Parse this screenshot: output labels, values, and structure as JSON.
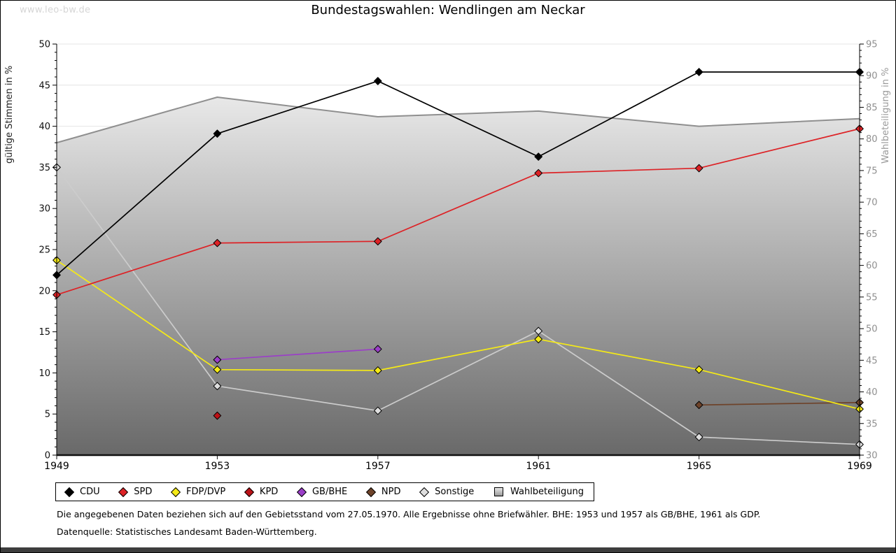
{
  "page": {
    "watermark": "www.leo-bw.de",
    "title": "Bundestagswahlen: Wendlingen am Neckar",
    "footnote_line1": "Die angegebenen Daten beziehen sich auf den Gebietsstand vom 27.05.1970. Alle Ergebnisse ohne Briefwähler. BHE: 1953 und 1957 als GB/BHE, 1961 als GDP.",
    "footnote_line2": "Datenquelle: Statistisches Landesamt Baden-Württemberg."
  },
  "chart_data": {
    "type": "line",
    "title": "Bundestagswahlen: Wendlingen am Neckar",
    "x": [
      1949,
      1953,
      1957,
      1961,
      1965,
      1969
    ],
    "left_axis": {
      "label": "gültige Stimmen in %",
      "min": 0,
      "max": 50,
      "tick_step": 5,
      "minor_step": 1
    },
    "right_axis": {
      "label": "Wahlbeteiligung in %",
      "min": 30,
      "max": 95,
      "tick_step": 5,
      "minor_step": 1
    },
    "grid": true,
    "legend_position": "bottom",
    "series": [
      {
        "name": "CDU",
        "color": "#000000",
        "axis": "left",
        "values": [
          21.9,
          39.1,
          45.5,
          36.3,
          46.6,
          46.6
        ]
      },
      {
        "name": "SPD",
        "color": "#dd2226",
        "axis": "left",
        "values": [
          19.5,
          25.8,
          26.0,
          34.3,
          34.9,
          39.7
        ]
      },
      {
        "name": "FDP/DVP",
        "color": "#f5ea16",
        "axis": "left",
        "values": [
          23.7,
          10.4,
          10.3,
          14.1,
          10.4,
          5.6
        ]
      },
      {
        "name": "KPD",
        "color": "#bb1117",
        "axis": "left",
        "values": [
          null,
          4.8,
          null,
          null,
          null,
          null
        ]
      },
      {
        "name": "GB/BHE",
        "color": "#9b3fc8",
        "axis": "left",
        "values": [
          null,
          11.6,
          12.9,
          null,
          null,
          null
        ]
      },
      {
        "name": "NPD",
        "color": "#6e432a",
        "axis": "left",
        "values": [
          null,
          null,
          null,
          null,
          6.1,
          6.4
        ]
      },
      {
        "name": "Sonstige",
        "color": "#dedede",
        "line_color": "#cccccc",
        "axis": "left",
        "values": [
          35.0,
          8.4,
          5.4,
          15.1,
          2.2,
          1.3
        ]
      }
    ],
    "turnout_series": {
      "name": "Wahlbeteiligung",
      "axis": "right",
      "line_color": "#8f8f8f",
      "area_fill_top": "#fbfbfb",
      "area_fill_bottom": "#696969",
      "values": [
        79.4,
        86.6,
        83.5,
        84.4,
        82.0,
        83.2
      ]
    },
    "grid_color": "#e4e4e4"
  }
}
